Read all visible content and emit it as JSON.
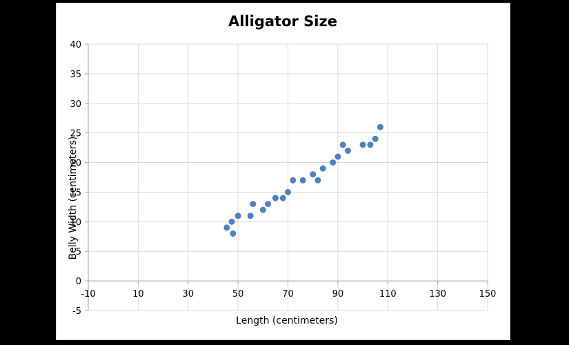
{
  "chart_data": {
    "type": "scatter",
    "title": "Alligator Size",
    "xlabel": "Length (centimeters)",
    "ylabel": "Belly Width (centimeters)",
    "xlim": [
      -10,
      150
    ],
    "ylim": [
      -5,
      40
    ],
    "xticks": [
      -10,
      10,
      30,
      50,
      70,
      90,
      110,
      130,
      150
    ],
    "yticks": [
      -5,
      0,
      5,
      10,
      15,
      20,
      25,
      30,
      35,
      40
    ],
    "grid": true,
    "legend": "none",
    "colors": {
      "marker": "#4f81bd",
      "grid": "#d9d9d9",
      "axis": "#a6a6a6"
    },
    "series": [
      {
        "points": [
          [
            45.5,
            9
          ],
          [
            47.5,
            10
          ],
          [
            48,
            8
          ],
          [
            50,
            11
          ],
          [
            55,
            11
          ],
          [
            56,
            13
          ],
          [
            60,
            12
          ],
          [
            62,
            13
          ],
          [
            65,
            14
          ],
          [
            68,
            14
          ],
          [
            70,
            15
          ],
          [
            72,
            17
          ],
          [
            76,
            17
          ],
          [
            80,
            18
          ],
          [
            82,
            17
          ],
          [
            84,
            19
          ],
          [
            88,
            20
          ],
          [
            90,
            21
          ],
          [
            92,
            23
          ],
          [
            94,
            22
          ],
          [
            100,
            23
          ],
          [
            103,
            23
          ],
          [
            105,
            24
          ],
          [
            107,
            26
          ]
        ]
      }
    ]
  }
}
